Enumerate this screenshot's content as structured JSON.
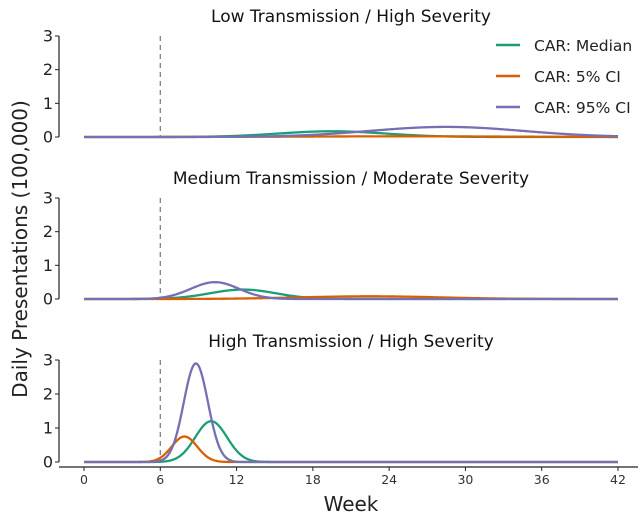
{
  "chart_data": {
    "type": "line",
    "ylabel": "Daily Presentations (100,000)",
    "xlabel": "Week",
    "x_ticks": [
      0,
      6,
      12,
      18,
      24,
      30,
      36,
      42
    ],
    "xlim": [
      0,
      42
    ],
    "ylim": [
      0,
      3
    ],
    "y_ticks": [
      0,
      1,
      2,
      3
    ],
    "vline_x": 6,
    "legend": {
      "placement": "top-right",
      "entries": [
        {
          "label": "CAR: Median",
          "color": "#1b9e77"
        },
        {
          "label": "CAR: 5% CI",
          "color": "#d95f02"
        },
        {
          "label": "CAR: 95% CI",
          "color": "#7570b3"
        }
      ]
    },
    "panels": [
      {
        "title": "Low Transmission / High Severity",
        "series": [
          {
            "name": "CAR: Median",
            "color": "#1b9e77",
            "peak_x": 19.5,
            "peak_y": 0.17,
            "width": 4.2
          },
          {
            "name": "CAR: 5% CI",
            "color": "#d95f02",
            "peak_x": 25,
            "peak_y": 0.02,
            "width": 8
          },
          {
            "name": "CAR: 95% CI",
            "color": "#7570b3",
            "peak_x": 28.5,
            "peak_y": 0.3,
            "width": 6
          }
        ]
      },
      {
        "title": "Medium Transmission / Moderate Severity",
        "series": [
          {
            "name": "CAR: Median",
            "color": "#1b9e77",
            "peak_x": 12.5,
            "peak_y": 0.28,
            "width": 2.6
          },
          {
            "name": "CAR: 5% CI",
            "color": "#d95f02",
            "peak_x": 22.5,
            "peak_y": 0.08,
            "width": 5.5
          },
          {
            "name": "CAR: 95% CI",
            "color": "#7570b3",
            "peak_x": 10.3,
            "peak_y": 0.5,
            "width": 1.9
          }
        ]
      },
      {
        "title": "High Transmission / High Severity",
        "series": [
          {
            "name": "CAR: Median",
            "color": "#1b9e77",
            "peak_x": 10.0,
            "peak_y": 1.2,
            "width": 1.25
          },
          {
            "name": "CAR: 5% CI",
            "color": "#d95f02",
            "peak_x": 7.9,
            "peak_y": 0.75,
            "width": 1.0
          },
          {
            "name": "CAR: 95% CI",
            "color": "#7570b3",
            "peak_x": 8.8,
            "peak_y": 2.9,
            "width": 0.95
          }
        ]
      }
    ]
  }
}
